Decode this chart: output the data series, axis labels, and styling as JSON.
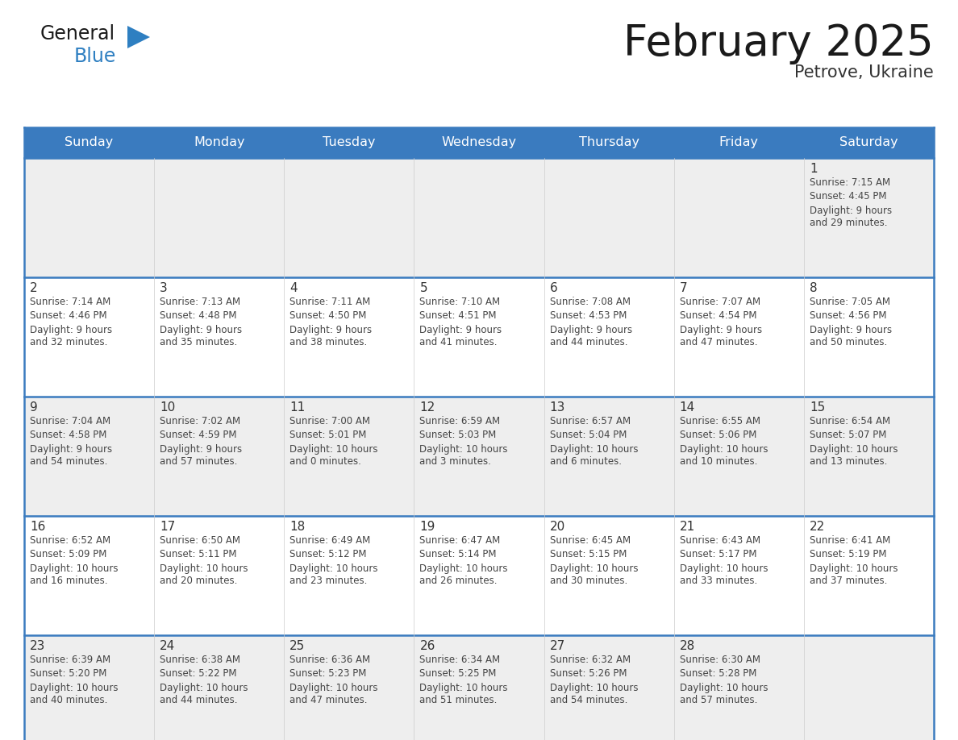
{
  "title": "February 2025",
  "subtitle": "Petrove, Ukraine",
  "days_of_week": [
    "Sunday",
    "Monday",
    "Tuesday",
    "Wednesday",
    "Thursday",
    "Friday",
    "Saturday"
  ],
  "header_bg_color": "#3a7bbf",
  "header_text_color": "#ffffff",
  "row0_bg": "#eeeeee",
  "row1_bg": "#ffffff",
  "row2_bg": "#eeeeee",
  "row3_bg": "#ffffff",
  "row4_bg": "#eeeeee",
  "separator_color": "#3a7bbf",
  "cell_text_color": "#444444",
  "day_num_color": "#333333",
  "title_color": "#1a1a1a",
  "subtitle_color": "#333333",
  "logo_general_color": "#1a1a1a",
  "logo_blue_color": "#2e7fc1",
  "calendar_data": [
    {
      "day": 1,
      "col": 6,
      "row": 0,
      "sunrise": "7:15 AM",
      "sunset": "4:45 PM",
      "daylight": "9 hours\nand 29 minutes."
    },
    {
      "day": 2,
      "col": 0,
      "row": 1,
      "sunrise": "7:14 AM",
      "sunset": "4:46 PM",
      "daylight": "9 hours\nand 32 minutes."
    },
    {
      "day": 3,
      "col": 1,
      "row": 1,
      "sunrise": "7:13 AM",
      "sunset": "4:48 PM",
      "daylight": "9 hours\nand 35 minutes."
    },
    {
      "day": 4,
      "col": 2,
      "row": 1,
      "sunrise": "7:11 AM",
      "sunset": "4:50 PM",
      "daylight": "9 hours\nand 38 minutes."
    },
    {
      "day": 5,
      "col": 3,
      "row": 1,
      "sunrise": "7:10 AM",
      "sunset": "4:51 PM",
      "daylight": "9 hours\nand 41 minutes."
    },
    {
      "day": 6,
      "col": 4,
      "row": 1,
      "sunrise": "7:08 AM",
      "sunset": "4:53 PM",
      "daylight": "9 hours\nand 44 minutes."
    },
    {
      "day": 7,
      "col": 5,
      "row": 1,
      "sunrise": "7:07 AM",
      "sunset": "4:54 PM",
      "daylight": "9 hours\nand 47 minutes."
    },
    {
      "day": 8,
      "col": 6,
      "row": 1,
      "sunrise": "7:05 AM",
      "sunset": "4:56 PM",
      "daylight": "9 hours\nand 50 minutes."
    },
    {
      "day": 9,
      "col": 0,
      "row": 2,
      "sunrise": "7:04 AM",
      "sunset": "4:58 PM",
      "daylight": "9 hours\nand 54 minutes."
    },
    {
      "day": 10,
      "col": 1,
      "row": 2,
      "sunrise": "7:02 AM",
      "sunset": "4:59 PM",
      "daylight": "9 hours\nand 57 minutes."
    },
    {
      "day": 11,
      "col": 2,
      "row": 2,
      "sunrise": "7:00 AM",
      "sunset": "5:01 PM",
      "daylight": "10 hours\nand 0 minutes."
    },
    {
      "day": 12,
      "col": 3,
      "row": 2,
      "sunrise": "6:59 AM",
      "sunset": "5:03 PM",
      "daylight": "10 hours\nand 3 minutes."
    },
    {
      "day": 13,
      "col": 4,
      "row": 2,
      "sunrise": "6:57 AM",
      "sunset": "5:04 PM",
      "daylight": "10 hours\nand 6 minutes."
    },
    {
      "day": 14,
      "col": 5,
      "row": 2,
      "sunrise": "6:55 AM",
      "sunset": "5:06 PM",
      "daylight": "10 hours\nand 10 minutes."
    },
    {
      "day": 15,
      "col": 6,
      "row": 2,
      "sunrise": "6:54 AM",
      "sunset": "5:07 PM",
      "daylight": "10 hours\nand 13 minutes."
    },
    {
      "day": 16,
      "col": 0,
      "row": 3,
      "sunrise": "6:52 AM",
      "sunset": "5:09 PM",
      "daylight": "10 hours\nand 16 minutes."
    },
    {
      "day": 17,
      "col": 1,
      "row": 3,
      "sunrise": "6:50 AM",
      "sunset": "5:11 PM",
      "daylight": "10 hours\nand 20 minutes."
    },
    {
      "day": 18,
      "col": 2,
      "row": 3,
      "sunrise": "6:49 AM",
      "sunset": "5:12 PM",
      "daylight": "10 hours\nand 23 minutes."
    },
    {
      "day": 19,
      "col": 3,
      "row": 3,
      "sunrise": "6:47 AM",
      "sunset": "5:14 PM",
      "daylight": "10 hours\nand 26 minutes."
    },
    {
      "day": 20,
      "col": 4,
      "row": 3,
      "sunrise": "6:45 AM",
      "sunset": "5:15 PM",
      "daylight": "10 hours\nand 30 minutes."
    },
    {
      "day": 21,
      "col": 5,
      "row": 3,
      "sunrise": "6:43 AM",
      "sunset": "5:17 PM",
      "daylight": "10 hours\nand 33 minutes."
    },
    {
      "day": 22,
      "col": 6,
      "row": 3,
      "sunrise": "6:41 AM",
      "sunset": "5:19 PM",
      "daylight": "10 hours\nand 37 minutes."
    },
    {
      "day": 23,
      "col": 0,
      "row": 4,
      "sunrise": "6:39 AM",
      "sunset": "5:20 PM",
      "daylight": "10 hours\nand 40 minutes."
    },
    {
      "day": 24,
      "col": 1,
      "row": 4,
      "sunrise": "6:38 AM",
      "sunset": "5:22 PM",
      "daylight": "10 hours\nand 44 minutes."
    },
    {
      "day": 25,
      "col": 2,
      "row": 4,
      "sunrise": "6:36 AM",
      "sunset": "5:23 PM",
      "daylight": "10 hours\nand 47 minutes."
    },
    {
      "day": 26,
      "col": 3,
      "row": 4,
      "sunrise": "6:34 AM",
      "sunset": "5:25 PM",
      "daylight": "10 hours\nand 51 minutes."
    },
    {
      "day": 27,
      "col": 4,
      "row": 4,
      "sunrise": "6:32 AM",
      "sunset": "5:26 PM",
      "daylight": "10 hours\nand 54 minutes."
    },
    {
      "day": 28,
      "col": 5,
      "row": 4,
      "sunrise": "6:30 AM",
      "sunset": "5:28 PM",
      "daylight": "10 hours\nand 57 minutes."
    }
  ]
}
